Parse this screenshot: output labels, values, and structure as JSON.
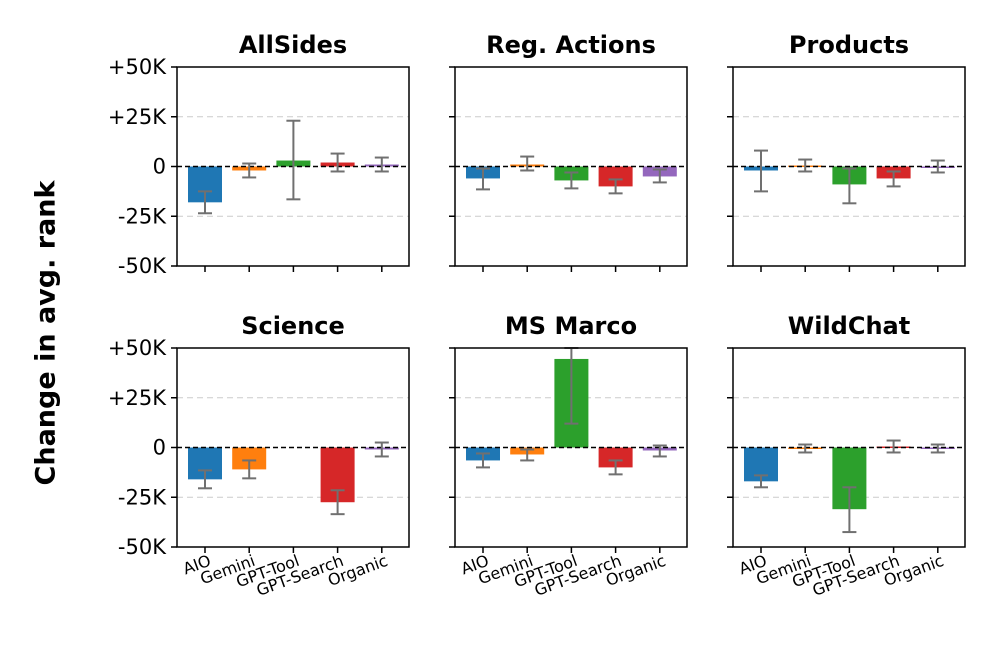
{
  "chart_data": {
    "type": "bar",
    "ylabel": "Change in avg. rank",
    "ylim": [
      -50000,
      50000
    ],
    "yticks": [
      {
        "value": 50000,
        "label": "+50K"
      },
      {
        "value": 25000,
        "label": "+25K"
      },
      {
        "value": 0,
        "label": "0"
      },
      {
        "value": -25000,
        "label": "-25K"
      },
      {
        "value": -50000,
        "label": "-50K"
      }
    ],
    "categories": [
      "AIO",
      "Gemini",
      "GPT-Tool",
      "GPT-Search",
      "Organic"
    ],
    "colors": [
      "#1f77b4",
      "#ff7f0e",
      "#2ca02c",
      "#d62728",
      "#9467bd"
    ],
    "error_bar_color": "#707070",
    "grid": "dashed horizontal",
    "panels": [
      {
        "title": "AllSides",
        "values": [
          -18000,
          -2000,
          3000,
          2000,
          1000
        ],
        "err_low": [
          -23500,
          -5500,
          -16500,
          -2500,
          -2500
        ],
        "err_high": [
          -12500,
          1500,
          23000,
          6500,
          4500
        ]
      },
      {
        "title": "Reg. Actions",
        "values": [
          -6000,
          1000,
          -7000,
          -10000,
          -5000
        ],
        "err_low": [
          -11500,
          -2000,
          -11000,
          -13500,
          -8000
        ],
        "err_high": [
          -1000,
          5000,
          -3000,
          -6500,
          -1500
        ]
      },
      {
        "title": "Products",
        "values": [
          -2000,
          500,
          -9000,
          -6000,
          0
        ],
        "err_low": [
          -12500,
          -2500,
          -18500,
          -10000,
          -3000
        ],
        "err_high": [
          8000,
          3500,
          -1000,
          -2500,
          3000
        ]
      },
      {
        "title": "Science",
        "values": [
          -16000,
          -11000,
          null,
          -27500,
          -1000
        ],
        "err_low": [
          -20500,
          -15500,
          null,
          -33500,
          -4500
        ],
        "err_high": [
          -11500,
          -6500,
          null,
          -21500,
          2500
        ]
      },
      {
        "title": "MS Marco",
        "values": [
          -6500,
          -3500,
          44500,
          -10000,
          -1500
        ],
        "err_low": [
          -10000,
          -6500,
          12000,
          -13500,
          -4500
        ],
        "err_high": [
          -3000,
          -1000,
          50000,
          -6500,
          1000
        ]
      },
      {
        "title": "WildChat",
        "values": [
          -17000,
          -500,
          -31000,
          500,
          -500
        ],
        "err_low": [
          -20000,
          -2500,
          -42500,
          -2500,
          -2500
        ],
        "err_high": [
          -14000,
          1500,
          -20000,
          3500,
          1500
        ]
      }
    ]
  }
}
